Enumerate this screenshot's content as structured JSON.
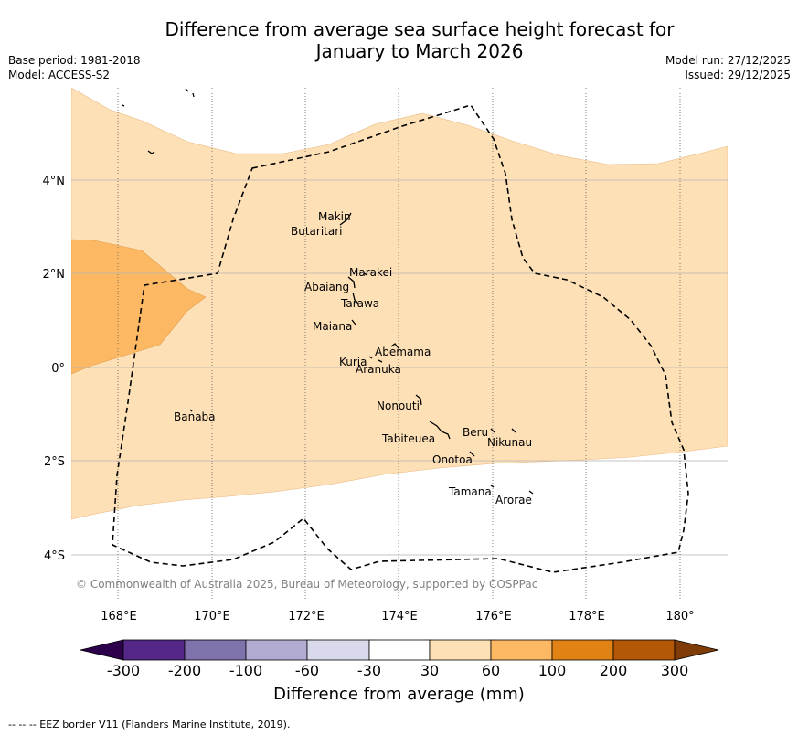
{
  "title_line1": "Difference from average sea surface height forecast for",
  "title_line2": "January to March 2026",
  "base_period": "Base period: 1981-2018",
  "model": "Model: ACCESS-S2",
  "model_run": "Model run: 27/12/2025",
  "issued": "Issued: 29/12/2025",
  "lat_labels": [
    "4°N",
    "2°N",
    "0°",
    "2°S",
    "4°S"
  ],
  "lon_labels": [
    "168°E",
    "170°E",
    "172°E",
    "174°E",
    "176°E",
    "178°E",
    "180°"
  ],
  "places": [
    "Makin",
    "Butaritari",
    "Marakei",
    "Abaiang",
    "Tarawa",
    "Maiana",
    "Abemama",
    "Kuria",
    "Aranuka",
    "Nonouti",
    "Tabiteuea",
    "Beru",
    "Nikunau",
    "Onotoa",
    "Tamana",
    "Arorae",
    "Banaba"
  ],
  "copyright": "© Commonwealth of Australia 2025, Bureau of Meteorology, supported by COSPPac",
  "colorbar": {
    "ticks": [
      "-300",
      "-200",
      "-100",
      "-60",
      "-30",
      "30",
      "60",
      "100",
      "200",
      "300"
    ],
    "colors": [
      "#2d004b",
      "#542788",
      "#8073ac",
      "#b2abd2",
      "#d8daeb",
      "#ffffff",
      "#fee0b6",
      "#fdb863",
      "#e08214",
      "#b35806",
      "#7f3b08"
    ],
    "title": "Difference from average (mm)"
  },
  "footnote": "--  --  -- EEZ border V11 (Flanders Marine Institute, 2019)."
}
